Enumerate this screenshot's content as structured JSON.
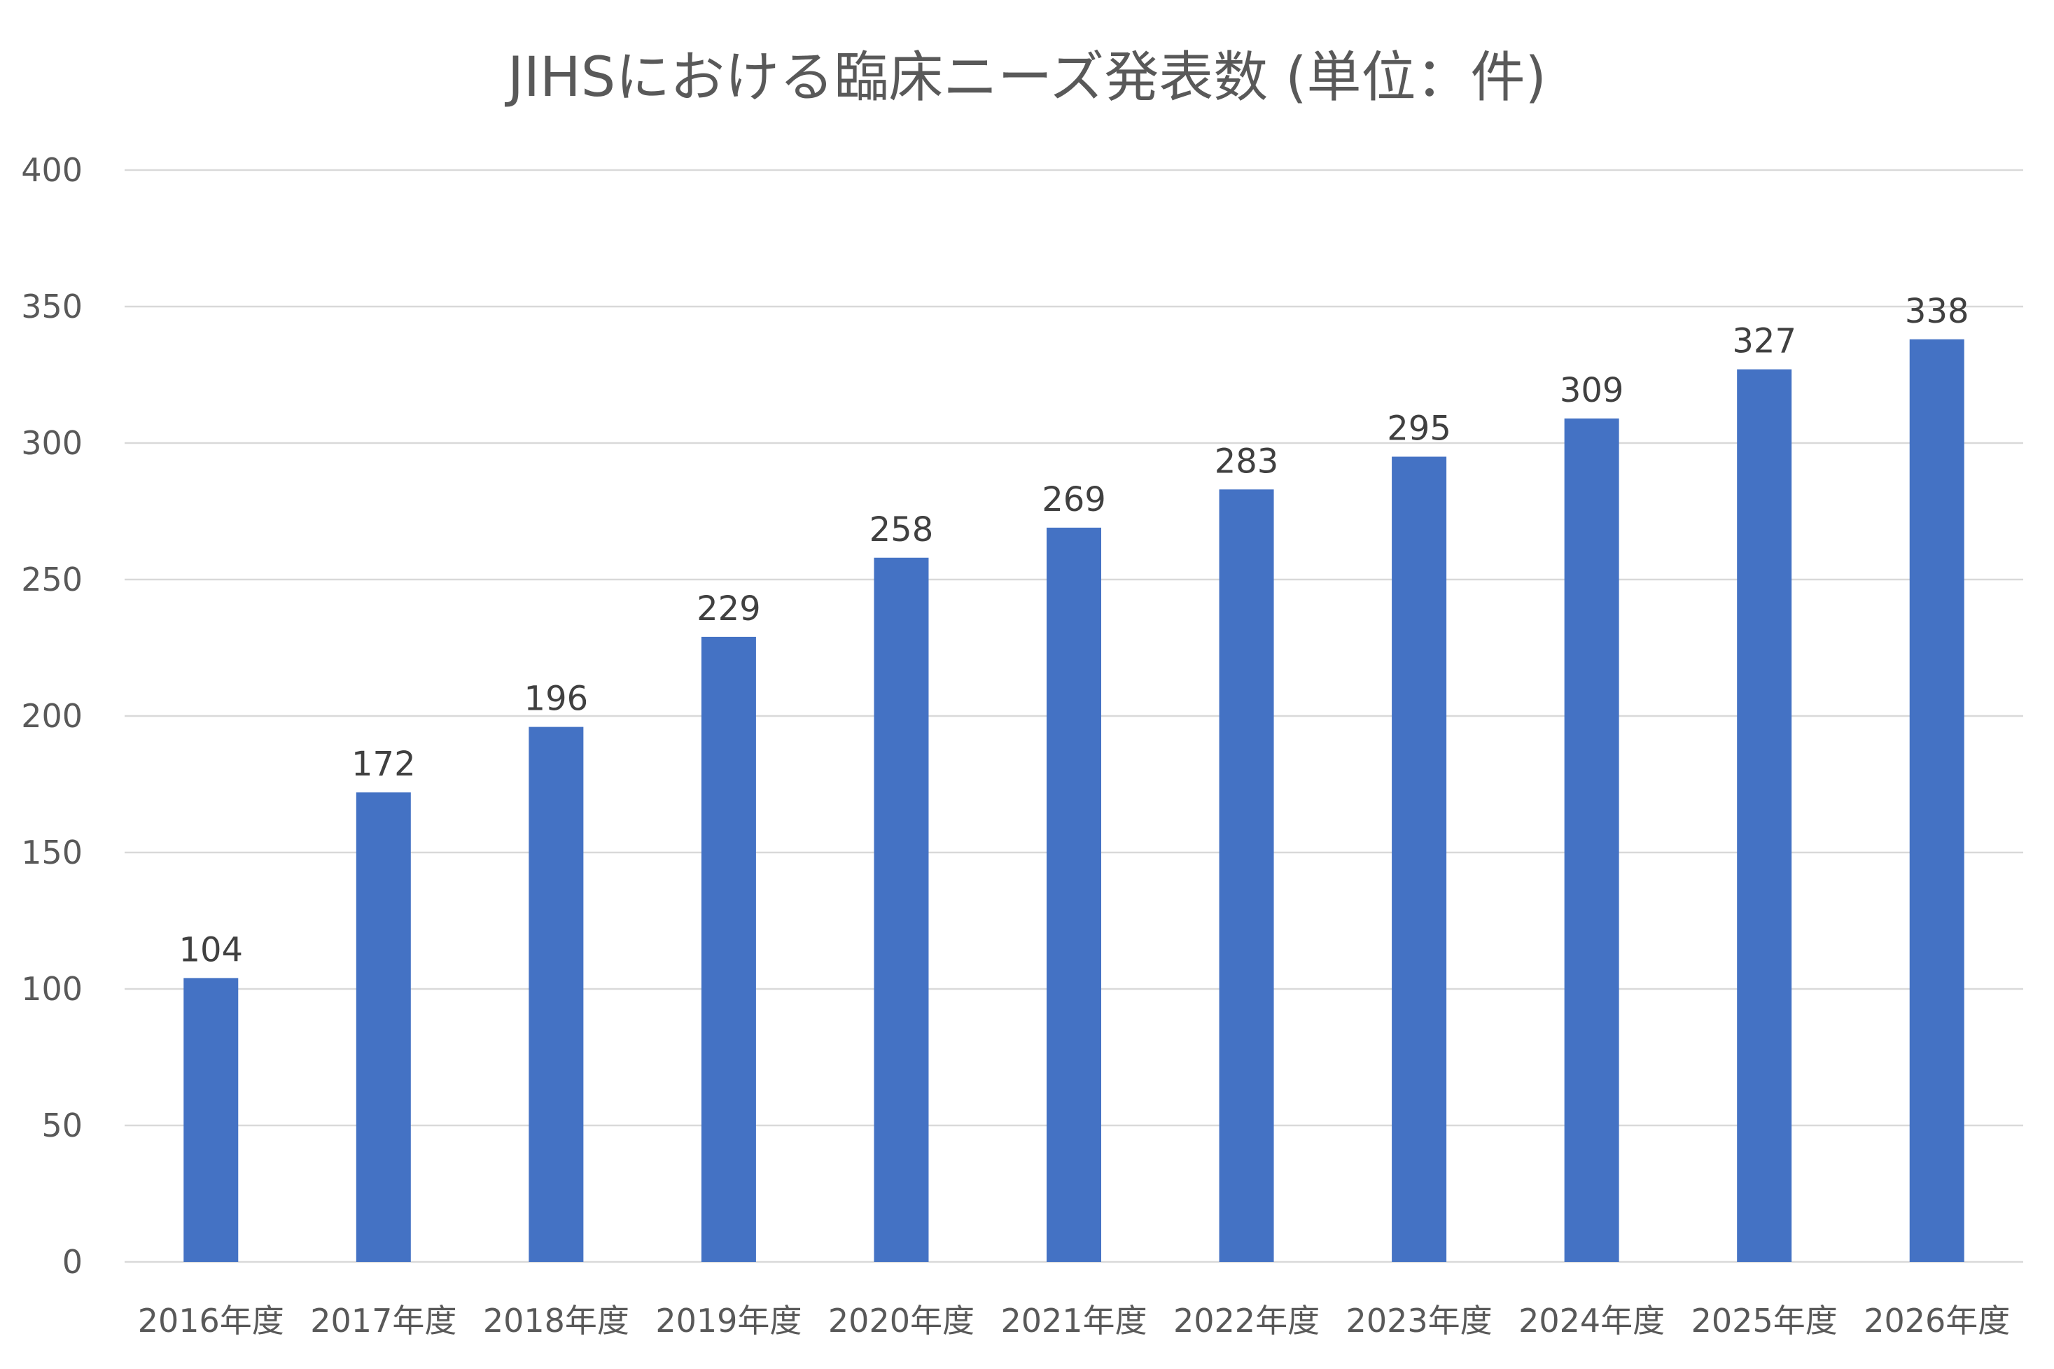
{
  "chart_data": {
    "type": "bar",
    "title": "JIHSにおける臨床ニーズ発表数 (単位：件)",
    "categories": [
      "2016年度",
      "2017年度",
      "2018年度",
      "2019年度",
      "2020年度",
      "2021年度",
      "2022年度",
      "2023年度",
      "2024年度",
      "2025年度",
      "2026年度"
    ],
    "series": [
      {
        "values": [
          104,
          172,
          196,
          229,
          258,
          269,
          283,
          295,
          309,
          327,
          338
        ],
        "color": "#4472c4"
      }
    ],
    "data_labels": [
      "104",
      "172",
      "196",
      "229",
      "258",
      "269",
      "283",
      "295",
      "309",
      "327",
      "338"
    ],
    "ylim": [
      0,
      400
    ],
    "yticks": [
      0,
      50,
      100,
      150,
      200,
      250,
      300,
      350,
      400
    ],
    "ytick_labels": [
      "0",
      "50",
      "100",
      "150",
      "200",
      "250",
      "300",
      "350",
      "400"
    ],
    "xlabel": "",
    "ylabel": "",
    "grid": true,
    "legend": "none"
  }
}
